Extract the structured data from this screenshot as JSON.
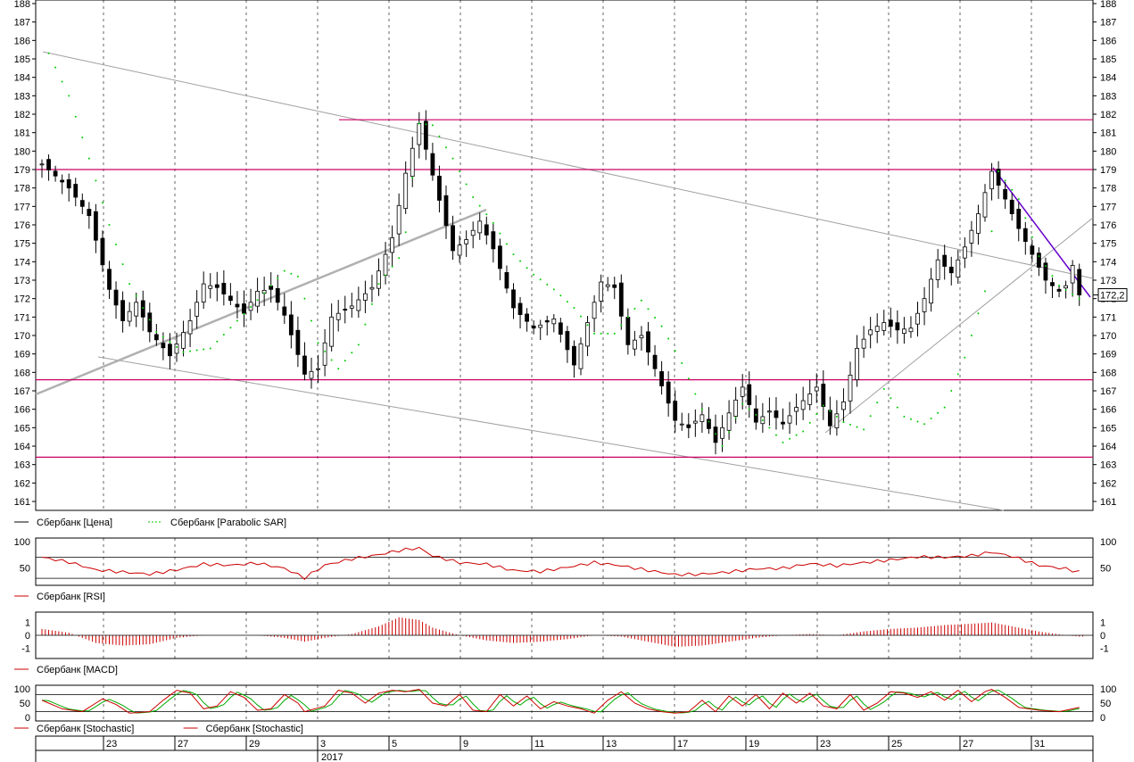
{
  "chart_data": {
    "type": "candlestick",
    "instrument": "Сбербанк",
    "last_price": "172,2",
    "price_axis": {
      "min": 161,
      "max": 188,
      "step": 1
    },
    "x_axis": {
      "ticks": [
        "23",
        "27",
        "29",
        "3",
        "5",
        "9",
        "11",
        "13",
        "17",
        "19",
        "23",
        "25",
        "27",
        "31"
      ],
      "year_label": "2017"
    },
    "legends": {
      "price": [
        {
          "name": "Сбербанк [Цена]",
          "color": "#000000",
          "dashed": false
        },
        {
          "name": "Сбербанк [Parabolic SAR]",
          "color": "#00cc00",
          "dashed": true
        }
      ],
      "rsi": [
        {
          "name": "Сбербанк [RSI]",
          "color": "#cc0000"
        }
      ],
      "macd": [
        {
          "name": "Сбербанк [MACD]",
          "color": "#cc0000"
        }
      ],
      "stoch": [
        {
          "name": "Сбербанк [Stochastic]",
          "color": "#cc0000"
        },
        {
          "name": "Сбербанк [Stochastic]",
          "color": "#cc0000"
        }
      ]
    },
    "horizontal_levels": [
      181.7,
      179.0,
      167.6,
      163.4
    ],
    "rsi_axis": {
      "ticks": [
        "100",
        "50"
      ]
    },
    "macd_axis": {
      "ticks": [
        "1",
        "0",
        "-1"
      ]
    },
    "stoch_axis": {
      "ticks": [
        "100",
        "50",
        "0"
      ]
    },
    "price_path": [
      [
        0,
        179.3
      ],
      [
        4,
        178
      ],
      [
        7,
        176.5
      ],
      [
        10,
        172.5
      ],
      [
        12,
        170.8
      ],
      [
        14,
        171.8
      ],
      [
        16,
        170.2
      ],
      [
        19,
        168.9
      ],
      [
        22,
        170.8
      ],
      [
        24,
        172.8
      ],
      [
        26,
        172.6
      ],
      [
        28,
        171.9
      ],
      [
        30,
        171.2
      ],
      [
        32,
        172.4
      ],
      [
        34,
        172.5
      ],
      [
        36,
        171.1
      ],
      [
        39,
        167.9
      ],
      [
        41,
        168.2
      ],
      [
        43,
        171.0
      ],
      [
        46,
        171.6
      ],
      [
        49,
        172.6
      ],
      [
        52,
        175.3
      ],
      [
        54,
        178.8
      ],
      [
        56,
        181.5
      ],
      [
        58,
        178.7
      ],
      [
        61,
        174.6
      ],
      [
        63,
        175.2
      ],
      [
        65,
        176.2
      ],
      [
        67,
        174.7
      ],
      [
        70,
        171.5
      ],
      [
        73,
        170.4
      ],
      [
        76,
        170.9
      ],
      [
        79,
        168.4
      ],
      [
        81,
        170.7
      ],
      [
        83,
        172.9
      ],
      [
        85,
        172.6
      ],
      [
        87,
        169.5
      ],
      [
        89,
        170.0
      ],
      [
        91,
        168.2
      ],
      [
        94,
        165.4
      ],
      [
        96,
        165.0
      ],
      [
        98,
        165.7
      ],
      [
        100,
        164.2
      ],
      [
        102,
        165.8
      ],
      [
        104,
        167.2
      ],
      [
        106,
        165.3
      ],
      [
        108,
        165.9
      ],
      [
        110,
        165.2
      ],
      [
        112,
        166.1
      ],
      [
        115,
        167.2
      ],
      [
        117,
        165.1
      ],
      [
        119,
        166.4
      ],
      [
        121,
        169.3
      ],
      [
        123,
        170.3
      ],
      [
        125,
        170.7
      ],
      [
        127,
        170.3
      ],
      [
        129,
        170.4
      ],
      [
        131,
        172.0
      ],
      [
        133,
        174.1
      ],
      [
        135,
        173.4
      ],
      [
        137,
        174.8
      ],
      [
        139,
        176.6
      ],
      [
        141,
        178.9
      ],
      [
        143,
        177.4
      ],
      [
        145,
        175.8
      ],
      [
        147,
        174.4
      ],
      [
        149,
        173.0
      ],
      [
        151,
        172.4
      ],
      [
        152,
        172.7
      ],
      [
        153,
        173.8
      ],
      [
        154,
        172.2
      ]
    ],
    "sar_path": [
      [
        1,
        185.3
      ],
      [
        4,
        183
      ],
      [
        7,
        179.6
      ],
      [
        10,
        176
      ],
      [
        13,
        172.8
      ],
      [
        17,
        170.2
      ],
      [
        21,
        169.1
      ],
      [
        25,
        169.3
      ],
      [
        29,
        170.8
      ],
      [
        33,
        172.3
      ],
      [
        36,
        173.5
      ],
      [
        38,
        173.2
      ],
      [
        41,
        169.6
      ],
      [
        44,
        168.2
      ],
      [
        47,
        169.5
      ],
      [
        50,
        172.8
      ],
      [
        53,
        174.2
      ],
      [
        54,
        175.6
      ],
      [
        56,
        181.5
      ],
      [
        58,
        181.4
      ],
      [
        61,
        179.6
      ],
      [
        64,
        177.5
      ],
      [
        67,
        176.1
      ],
      [
        70,
        174.4
      ],
      [
        73,
        173.3
      ],
      [
        76,
        172.5
      ],
      [
        79,
        171.5
      ],
      [
        82,
        170.1
      ],
      [
        85,
        170.1
      ],
      [
        89,
        171.9
      ],
      [
        92,
        170.5
      ],
      [
        95,
        168.5
      ],
      [
        98,
        166.0
      ],
      [
        101,
        164.0
      ],
      [
        104,
        166.3
      ],
      [
        107,
        165.4
      ],
      [
        110,
        164.2
      ],
      [
        113,
        164.8
      ],
      [
        116,
        166.2
      ],
      [
        119,
        165.3
      ],
      [
        122,
        164.9
      ],
      [
        125,
        167.1
      ],
      [
        128,
        165.6
      ],
      [
        131,
        165.2
      ],
      [
        134,
        166.1
      ],
      [
        137,
        168.8
      ],
      [
        140,
        172.4
      ],
      [
        142,
        178.9
      ],
      [
        145,
        177.4
      ],
      [
        148,
        174.3
      ],
      [
        151,
        172.7
      ],
      [
        154,
        172.0
      ]
    ],
    "rsi_path": [
      [
        0,
        70
      ],
      [
        4,
        61
      ],
      [
        8,
        46
      ],
      [
        12,
        42
      ],
      [
        16,
        38
      ],
      [
        20,
        46
      ],
      [
        24,
        57
      ],
      [
        28,
        55
      ],
      [
        32,
        59
      ],
      [
        36,
        49
      ],
      [
        39,
        31
      ],
      [
        42,
        55
      ],
      [
        46,
        67
      ],
      [
        50,
        75
      ],
      [
        53,
        83
      ],
      [
        56,
        88
      ],
      [
        58,
        73
      ],
      [
        62,
        60
      ],
      [
        66,
        57
      ],
      [
        70,
        45
      ],
      [
        74,
        43
      ],
      [
        78,
        51
      ],
      [
        82,
        60
      ],
      [
        86,
        54
      ],
      [
        90,
        45
      ],
      [
        94,
        37
      ],
      [
        98,
        38
      ],
      [
        102,
        42
      ],
      [
        106,
        48
      ],
      [
        110,
        49
      ],
      [
        114,
        58
      ],
      [
        118,
        54
      ],
      [
        122,
        60
      ],
      [
        126,
        65
      ],
      [
        130,
        71
      ],
      [
        134,
        70
      ],
      [
        138,
        73
      ],
      [
        141,
        80
      ],
      [
        144,
        72
      ],
      [
        148,
        55
      ],
      [
        152,
        48
      ],
      [
        154,
        42
      ]
    ],
    "macd_path": [
      [
        0,
        0.5
      ],
      [
        4,
        0.2
      ],
      [
        8,
        -0.6
      ],
      [
        12,
        -0.8
      ],
      [
        16,
        -0.7
      ],
      [
        20,
        -0.2
      ],
      [
        24,
        0.0
      ],
      [
        28,
        0.0
      ],
      [
        32,
        0.0
      ],
      [
        36,
        -0.2
      ],
      [
        39,
        -0.5
      ],
      [
        42,
        -0.2
      ],
      [
        46,
        0.1
      ],
      [
        50,
        0.7
      ],
      [
        53,
        1.4
      ],
      [
        56,
        1.2
      ],
      [
        58,
        0.6
      ],
      [
        62,
        0.0
      ],
      [
        66,
        -0.4
      ],
      [
        70,
        -0.6
      ],
      [
        74,
        -0.5
      ],
      [
        78,
        -0.3
      ],
      [
        82,
        0.0
      ],
      [
        86,
        -0.1
      ],
      [
        90,
        -0.5
      ],
      [
        94,
        -0.9
      ],
      [
        98,
        -0.8
      ],
      [
        102,
        -0.5
      ],
      [
        106,
        -0.2
      ],
      [
        110,
        0.0
      ],
      [
        114,
        0.1
      ],
      [
        118,
        0.0
      ],
      [
        122,
        0.3
      ],
      [
        126,
        0.5
      ],
      [
        130,
        0.6
      ],
      [
        134,
        0.8
      ],
      [
        138,
        0.9
      ],
      [
        141,
        1.0
      ],
      [
        144,
        0.7
      ],
      [
        148,
        0.3
      ],
      [
        152,
        0.0
      ],
      [
        154,
        -0.1
      ]
    ],
    "stoch_path": [
      [
        0,
        60
      ],
      [
        3,
        30
      ],
      [
        6,
        20
      ],
      [
        9,
        65
      ],
      [
        11,
        45
      ],
      [
        13,
        15
      ],
      [
        16,
        20
      ],
      [
        18,
        60
      ],
      [
        20,
        95
      ],
      [
        22,
        85
      ],
      [
        24,
        30
      ],
      [
        26,
        40
      ],
      [
        28,
        90
      ],
      [
        30,
        70
      ],
      [
        32,
        25
      ],
      [
        34,
        30
      ],
      [
        36,
        80
      ],
      [
        38,
        50
      ],
      [
        39,
        20
      ],
      [
        42,
        40
      ],
      [
        44,
        95
      ],
      [
        46,
        85
      ],
      [
        48,
        50
      ],
      [
        50,
        85
      ],
      [
        52,
        95
      ],
      [
        54,
        90
      ],
      [
        56,
        98
      ],
      [
        58,
        50
      ],
      [
        60,
        40
      ],
      [
        62,
        80
      ],
      [
        64,
        25
      ],
      [
        66,
        20
      ],
      [
        68,
        80
      ],
      [
        70,
        40
      ],
      [
        72,
        75
      ],
      [
        74,
        30
      ],
      [
        76,
        55
      ],
      [
        78,
        40
      ],
      [
        80,
        30
      ],
      [
        82,
        15
      ],
      [
        84,
        60
      ],
      [
        86,
        90
      ],
      [
        88,
        50
      ],
      [
        90,
        30
      ],
      [
        92,
        20
      ],
      [
        94,
        15
      ],
      [
        96,
        20
      ],
      [
        98,
        60
      ],
      [
        100,
        20
      ],
      [
        102,
        75
      ],
      [
        104,
        40
      ],
      [
        106,
        80
      ],
      [
        108,
        30
      ],
      [
        110,
        85
      ],
      [
        112,
        50
      ],
      [
        114,
        85
      ],
      [
        116,
        40
      ],
      [
        118,
        30
      ],
      [
        120,
        80
      ],
      [
        122,
        25
      ],
      [
        124,
        50
      ],
      [
        126,
        90
      ],
      [
        128,
        85
      ],
      [
        130,
        70
      ],
      [
        132,
        90
      ],
      [
        134,
        60
      ],
      [
        136,
        95
      ],
      [
        138,
        55
      ],
      [
        140,
        90
      ],
      [
        141,
        98
      ],
      [
        143,
        70
      ],
      [
        145,
        35
      ],
      [
        148,
        25
      ],
      [
        151,
        20
      ],
      [
        154,
        35
      ]
    ]
  }
}
